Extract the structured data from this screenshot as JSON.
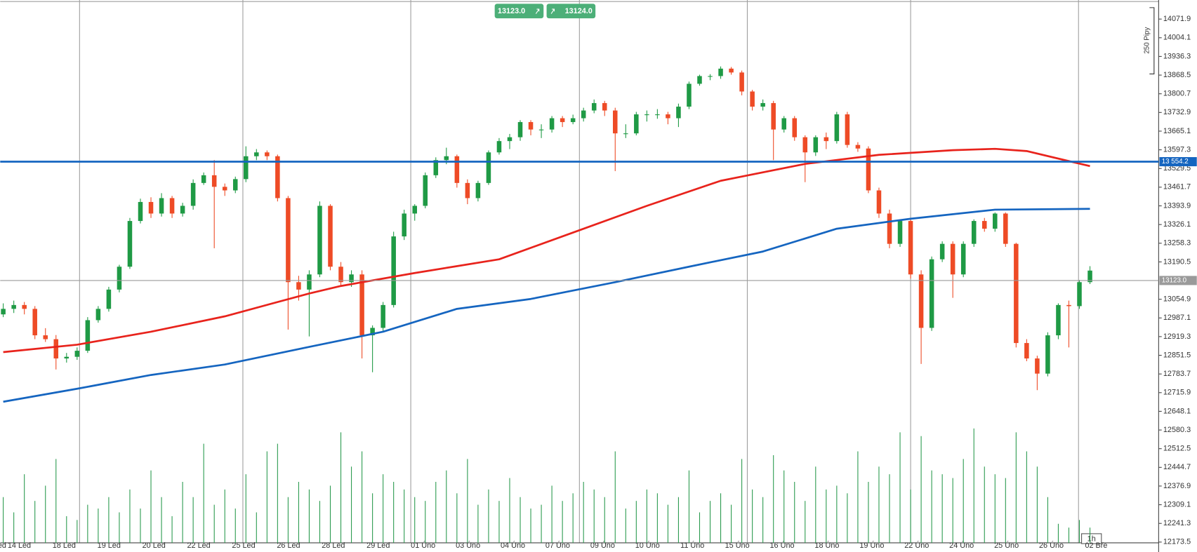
{
  "chart_data": {
    "type": "candlestick",
    "up_color": "#1f9a45",
    "down_color": "#ee4b26",
    "volume_color": "#2a9a4e",
    "ylim": [
      12170.7,
      14141.1
    ],
    "yticks": [
      14071.9,
      14004.1,
      13936.3,
      13868.5,
      13800.7,
      13732.9,
      13665.1,
      13597.3,
      13529.5,
      13461.7,
      13393.9,
      13326.1,
      13258.3,
      13190.5,
      13054.9,
      12987.1,
      12919.3,
      12851.5,
      12783.7,
      12715.9,
      12648.1,
      12580.3,
      12512.5,
      12444.7,
      12376.9,
      12309.1,
      12241.3,
      12173.5
    ],
    "x_labels": [
      "ed",
      "14 Led",
      "18 Led",
      "19 Led",
      "20 Led",
      "22 Led",
      "25 Led",
      "26 Led",
      "28 Led",
      "29 Led",
      "01 Úno",
      "03 Úno",
      "04 Úno",
      "07 Úno",
      "09 Úno",
      "10 Úno",
      "11 Úno",
      "15 Úno",
      "16 Úno",
      "18 Úno",
      "19 Úno",
      "22 Úno",
      "24 Úno",
      "25 Úno",
      "26 Úno",
      "02 Bře"
    ],
    "ohlc": [
      [
        13000,
        13040,
        12990,
        13020
      ],
      [
        13020,
        13050,
        13005,
        13034
      ],
      [
        13034,
        13045,
        13000,
        13020
      ],
      [
        13020,
        13030,
        12910,
        12924
      ],
      [
        12924,
        12950,
        12900,
        12910
      ],
      [
        12910,
        12925,
        12800,
        12840
      ],
      [
        12840,
        12860,
        12825,
        12846
      ],
      [
        12846,
        12880,
        12835,
        12868
      ],
      [
        12868,
        12990,
        12860,
        12979
      ],
      [
        12979,
        13030,
        12970,
        13020
      ],
      [
        13020,
        13100,
        13010,
        13090
      ],
      [
        13090,
        13180,
        13080,
        13173
      ],
      [
        13173,
        13350,
        13165,
        13339
      ],
      [
        13339,
        13420,
        13330,
        13408
      ],
      [
        13408,
        13425,
        13350,
        13366
      ],
      [
        13366,
        13440,
        13355,
        13422
      ],
      [
        13422,
        13430,
        13350,
        13366
      ],
      [
        13366,
        13405,
        13355,
        13394
      ],
      [
        13394,
        13490,
        13380,
        13477
      ],
      [
        13477,
        13515,
        13470,
        13505
      ],
      [
        13505,
        13560,
        13240,
        13463
      ],
      [
        13463,
        13475,
        13430,
        13450
      ],
      [
        13450,
        13500,
        13440,
        13491
      ],
      [
        13491,
        13610,
        13480,
        13574
      ],
      [
        13574,
        13600,
        13560,
        13588
      ],
      [
        13588,
        13595,
        13560,
        13574
      ],
      [
        13574,
        13580,
        13410,
        13422
      ],
      [
        13422,
        13430,
        12945,
        13117
      ],
      [
        13117,
        13140,
        13050,
        13090
      ],
      [
        13090,
        13160,
        12920,
        13145
      ],
      [
        13145,
        13410,
        13135,
        13394
      ],
      [
        13394,
        13400,
        13160,
        13173
      ],
      [
        13173,
        13190,
        13100,
        13117
      ],
      [
        13117,
        13160,
        13100,
        13145
      ],
      [
        13145,
        13160,
        12840,
        12924
      ],
      [
        12924,
        12960,
        12790,
        12951
      ],
      [
        12951,
        13045,
        12940,
        13034
      ],
      [
        13034,
        13300,
        13025,
        13283
      ],
      [
        13283,
        13380,
        13270,
        13366
      ],
      [
        13366,
        13400,
        13340,
        13394
      ],
      [
        13394,
        13515,
        13385,
        13505
      ],
      [
        13505,
        13570,
        13495,
        13560
      ],
      [
        13560,
        13605,
        13545,
        13574
      ],
      [
        13574,
        13580,
        13460,
        13477
      ],
      [
        13477,
        13490,
        13400,
        13422
      ],
      [
        13422,
        13485,
        13410,
        13477
      ],
      [
        13477,
        13595,
        13470,
        13588
      ],
      [
        13588,
        13640,
        13580,
        13629
      ],
      [
        13629,
        13655,
        13600,
        13643
      ],
      [
        13643,
        13705,
        13630,
        13698
      ],
      [
        13698,
        13705,
        13650,
        13671
      ],
      [
        13671,
        13690,
        13640,
        13671
      ],
      [
        13671,
        13720,
        13660,
        13712
      ],
      [
        13712,
        13720,
        13680,
        13698
      ],
      [
        13698,
        13725,
        13690,
        13712
      ],
      [
        13712,
        13750,
        13700,
        13740
      ],
      [
        13740,
        13780,
        13730,
        13767
      ],
      [
        13767,
        13775,
        13720,
        13740
      ],
      [
        13740,
        13750,
        13520,
        13657
      ],
      [
        13657,
        13690,
        13640,
        13657
      ],
      [
        13657,
        13735,
        13650,
        13726
      ],
      [
        13726,
        13740,
        13700,
        13726
      ],
      [
        13726,
        13745,
        13710,
        13726
      ],
      [
        13726,
        13735,
        13690,
        13712
      ],
      [
        13712,
        13765,
        13680,
        13754
      ],
      [
        13754,
        13845,
        13745,
        13837
      ],
      [
        13837,
        13870,
        13830,
        13865
      ],
      [
        13865,
        13872,
        13850,
        13865
      ],
      [
        13865,
        13900,
        13855,
        13892
      ],
      [
        13892,
        13898,
        13870,
        13878
      ],
      [
        13878,
        13885,
        13795,
        13809
      ],
      [
        13809,
        13815,
        13740,
        13754
      ],
      [
        13754,
        13780,
        13740,
        13767
      ],
      [
        13767,
        13775,
        13560,
        13671
      ],
      [
        13671,
        13720,
        13660,
        13712
      ],
      [
        13712,
        13720,
        13630,
        13643
      ],
      [
        13643,
        13650,
        13480,
        13588
      ],
      [
        13588,
        13650,
        13575,
        13643
      ],
      [
        13643,
        13660,
        13600,
        13629
      ],
      [
        13629,
        13735,
        13620,
        13726
      ],
      [
        13726,
        13735,
        13605,
        13615
      ],
      [
        13615,
        13625,
        13590,
        13602
      ],
      [
        13602,
        13610,
        13440,
        13450
      ],
      [
        13450,
        13460,
        13350,
        13366
      ],
      [
        13366,
        13380,
        13240,
        13256
      ],
      [
        13256,
        13345,
        13245,
        13339
      ],
      [
        13339,
        13350,
        13130,
        13145
      ],
      [
        13145,
        13160,
        12820,
        12951
      ],
      [
        12951,
        13210,
        12940,
        13200
      ],
      [
        13200,
        13265,
        13190,
        13256
      ],
      [
        13256,
        13265,
        13060,
        13145
      ],
      [
        13145,
        13265,
        13135,
        13256
      ],
      [
        13256,
        13345,
        13245,
        13339
      ],
      [
        13339,
        13350,
        13300,
        13311
      ],
      [
        13311,
        13370,
        13300,
        13366
      ],
      [
        13366,
        13370,
        13245,
        13256
      ],
      [
        13256,
        13260,
        12880,
        12896
      ],
      [
        12896,
        12910,
        12830,
        12840
      ],
      [
        12840,
        12850,
        12725,
        12785
      ],
      [
        12785,
        12935,
        12775,
        12924
      ],
      [
        12924,
        13040,
        12910,
        13034
      ],
      [
        13034,
        13050,
        12880,
        13030
      ],
      [
        13030,
        13125,
        13020,
        13117
      ],
      [
        13117,
        13175,
        13110,
        13159
      ]
    ],
    "volume": [
      60,
      40,
      90,
      55,
      75,
      110,
      35,
      30,
      50,
      45,
      60,
      40,
      70,
      45,
      95,
      60,
      35,
      80,
      60,
      130,
      50,
      70,
      45,
      90,
      40,
      120,
      130,
      60,
      80,
      70,
      55,
      75,
      145,
      100,
      120,
      65,
      90,
      80,
      70,
      60,
      55,
      80,
      95,
      65,
      110,
      50,
      70,
      55,
      85,
      60,
      45,
      50,
      75,
      55,
      65,
      80,
      70,
      60,
      120,
      45,
      55,
      70,
      65,
      50,
      60,
      95,
      40,
      55,
      65,
      50,
      110,
      70,
      60,
      115,
      95,
      80,
      55,
      100,
      70,
      75,
      65,
      120,
      80,
      100,
      90,
      145,
      70,
      140,
      95,
      90,
      85,
      110,
      150,
      100,
      90,
      85,
      145,
      120,
      100,
      60,
      25,
      20,
      30,
      20
    ],
    "series": [
      {
        "color": "#e8231c",
        "x": [
          0,
          7,
          14,
          21,
          29,
          32,
          39,
          47,
          54,
          61,
          68,
          76,
          83,
          90,
          94,
          97,
          103
        ],
        "values": [
          12863,
          12890,
          12937,
          12993,
          13076,
          13103,
          13150,
          13200,
          13297,
          13394,
          13485,
          13546,
          13579,
          13596,
          13601,
          13593,
          13538
        ]
      },
      {
        "color": "#1565c0",
        "x": [
          0,
          7,
          14,
          21,
          29,
          36,
          43,
          50,
          58,
          65,
          72,
          79,
          86,
          94,
          103
        ],
        "values": [
          12683,
          12730,
          12780,
          12818,
          12882,
          12937,
          13020,
          13056,
          13117,
          13173,
          13228,
          13311,
          13347,
          13380,
          13383
        ]
      }
    ],
    "hlines": [
      {
        "value": 13554.2,
        "label": "13 554.2",
        "color": "#1565c0"
      },
      {
        "value": 13123,
        "label": "13123.0",
        "color": "#9a9a9a"
      }
    ],
    "quote_buttons": [
      "13123.0",
      "13124.0"
    ],
    "range_marker": "250 Pipy",
    "timeframe": "1h"
  }
}
